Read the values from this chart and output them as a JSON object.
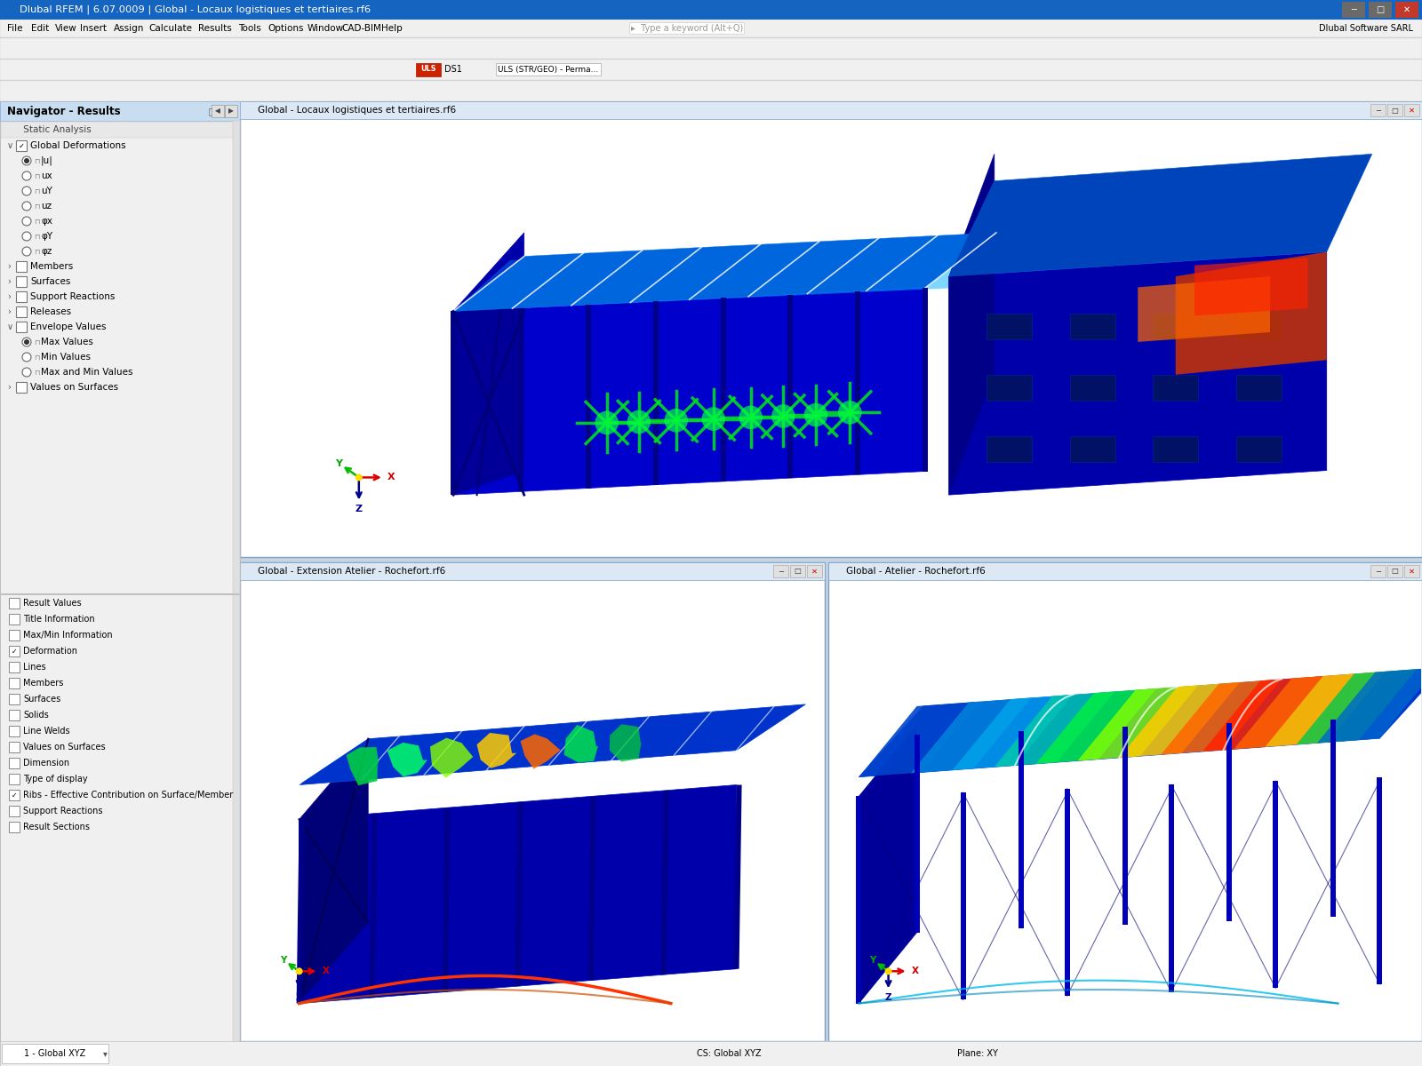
{
  "title_bar": "Dlubal RFEM | 6.07.0009 | Global - Locaux logistiques et tertiaires.rf6",
  "title_bar_bg": "#1565c0",
  "title_bar_text_color": "#ffffff",
  "menu_bg": "#f0f0f0",
  "menu_items": [
    "File",
    "Edit",
    "View",
    "Insert",
    "Assign",
    "Calculate",
    "Results",
    "Tools",
    "Options",
    "Window",
    "CAD-BIM",
    "Help"
  ],
  "window_bg": "#c8d4e0",
  "navigator_bg": "#ffffff",
  "navigator_header_bg": "#c8ddf0",
  "navigator_title": "Navigator - Results",
  "navigator_section": "Static Analysis",
  "panel1_title": "Global - Locaux logistiques et tertiaires.rf6",
  "panel2_title": "Global - Extension Atelier - Rochefort.rf6",
  "panel3_title": "Global - Atelier - Rochefort.rf6",
  "panel_header_bg": "#dce9f5",
  "status_text1": "1 - Global XYZ",
  "status_text2": "CS: Global XYZ",
  "status_text3": "Plane: XY",
  "search_placeholder": "Type a keyword (Alt+Q)",
  "company_text": "Dlubal Software SARL",
  "uls_label": "ULS",
  "ds1_label": "DS1",
  "load_combo": "ULS (STR/GEO) - Perma...",
  "nav_items_upper": [
    [
      "Global Deformations",
      0,
      true,
      false
    ],
    [
      "|u|",
      1,
      false,
      true
    ],
    [
      "ux",
      1,
      false,
      false
    ],
    [
      "uY",
      1,
      false,
      false
    ],
    [
      "uz",
      1,
      false,
      false
    ],
    [
      "φx",
      1,
      false,
      false
    ],
    [
      "φY",
      1,
      false,
      false
    ],
    [
      "φz",
      1,
      false,
      false
    ],
    [
      "Members",
      0,
      false,
      false
    ],
    [
      "Surfaces",
      0,
      false,
      false
    ],
    [
      "Support Reactions",
      0,
      false,
      false
    ],
    [
      "Releases",
      0,
      false,
      false
    ],
    [
      "Envelope Values",
      0,
      true,
      false
    ],
    [
      "Max Values",
      1,
      false,
      true
    ],
    [
      "Min Values",
      1,
      false,
      false
    ],
    [
      "Max and Min Values",
      1,
      false,
      false
    ],
    [
      "Values on Surfaces",
      0,
      false,
      false
    ]
  ],
  "nav_items_lower": [
    "Result Values",
    "Title Information",
    "Max/Min Information",
    "Deformation",
    "Lines",
    "Members",
    "Surfaces",
    "Solids",
    "Line Welds",
    "Values on Surfaces",
    "Dimension",
    "Type of display",
    "Ribs - Effective Contribution on Surface/Member",
    "Support Reactions",
    "Result Sections"
  ]
}
